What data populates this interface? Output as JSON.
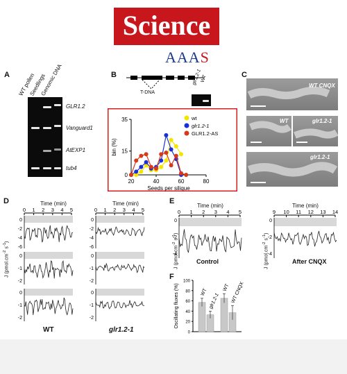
{
  "journal": {
    "name": "Science",
    "publisher_a": "AAA",
    "publisher_s": "S"
  },
  "panelA": {
    "label": "A",
    "lanes": [
      "WT pollen",
      "Seedlings",
      "Genomic DNA"
    ],
    "genes": [
      "GLR1.2",
      "Vanguard1",
      "AtEXP1",
      "tub4"
    ]
  },
  "panelB": {
    "label": "B",
    "tdna": "T-DNA",
    "inset_lanes": [
      "glr1.2-1",
      "WT"
    ],
    "chart_data": {
      "type": "line",
      "xlabel": "Seeds per silique",
      "ylabel": "bin (%)",
      "xlim": [
        20,
        80
      ],
      "ylim": [
        0,
        35
      ],
      "xticks": [
        20,
        40,
        60,
        80
      ],
      "yticks": [
        0,
        15,
        35
      ],
      "series": [
        {
          "name": "wt",
          "color": "#f2e600",
          "x": [
            20,
            24,
            28,
            32,
            36,
            40,
            44,
            48,
            52,
            56,
            60
          ],
          "y": [
            0,
            0,
            2,
            6,
            3,
            3,
            5,
            9,
            22,
            18,
            13
          ]
        },
        {
          "name": "glr1.2-1",
          "color": "#1a2fd6",
          "x": [
            20,
            24,
            28,
            32,
            36,
            40,
            44,
            48,
            52,
            56,
            60
          ],
          "y": [
            0,
            2,
            5,
            8,
            4,
            5,
            9,
            25,
            16,
            10,
            0
          ]
        },
        {
          "name": "GLR1.2-AS",
          "color": "#d63a1a",
          "x": [
            20,
            24,
            28,
            32,
            36,
            40,
            44,
            48,
            52,
            56,
            60,
            64
          ],
          "y": [
            0,
            9,
            12,
            13,
            5,
            4,
            13,
            14,
            6,
            12,
            1,
            0
          ]
        }
      ]
    }
  },
  "panelC": {
    "label": "C",
    "images": [
      {
        "label": "WT  CNQX"
      },
      {
        "label": "WT",
        "label2": "glr1.2-1"
      },
      {
        "label": "glr1.2-1"
      }
    ]
  },
  "panelD": {
    "label": "D",
    "xaxis_title": "Time (min)",
    "xticks": [
      "0",
      "1",
      "2",
      "3",
      "4",
      "5"
    ],
    "yticks_wt": [
      "0",
      "-2",
      "-4",
      "-6"
    ],
    "yticks_glr": [
      "0",
      "-2",
      "-4",
      "-6"
    ],
    "yticks_row2": [
      "0",
      "-1",
      "-2"
    ],
    "ylabel_parts": [
      "J (pmol.cm",
      "-2",
      "s",
      "-1",
      ")"
    ],
    "wt_label": "WT",
    "glr_label": "glr1.2-1"
  },
  "panelE": {
    "label": "E",
    "xaxis_title": "Time (min)",
    "control_ticks": [
      "0",
      "1",
      "2",
      "3",
      "4",
      "5"
    ],
    "cnqx_ticks": [
      "9",
      "10",
      "11",
      "12",
      "13",
      "14"
    ],
    "yticks": [
      "0",
      "-2",
      "-4"
    ],
    "control_label": "Control",
    "cnqx_label": "After CNQX"
  },
  "panelF": {
    "label": "F",
    "chart_data": {
      "type": "bar",
      "ylabel": "Oscillating fluxes (%)",
      "yticks": [
        0,
        20,
        40,
        60,
        80,
        100
      ],
      "ylim": [
        0,
        100
      ],
      "categories": [
        "WT",
        "glr1.2-1",
        "WT",
        "WT CNQX"
      ],
      "values": [
        57,
        33,
        65,
        37
      ],
      "errors": [
        8,
        7,
        9,
        14
      ]
    }
  }
}
